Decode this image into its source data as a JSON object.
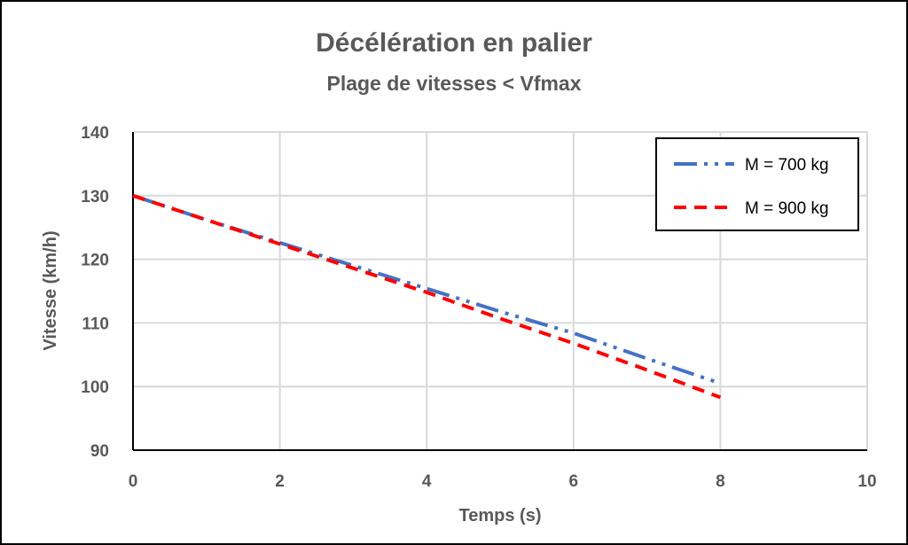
{
  "chart_data": {
    "type": "line",
    "title": "Décélération en palier",
    "subtitle": "Plage de vitesses < Vfmax",
    "xlabel": "Temps (s)",
    "ylabel": "Vitesse (km/h)",
    "xlim": [
      0,
      10
    ],
    "ylim": [
      90,
      140
    ],
    "x_ticks": [
      "0",
      "2",
      "4",
      "6",
      "8",
      "10"
    ],
    "y_ticks": [
      "90",
      "100",
      "110",
      "120",
      "130",
      "140"
    ],
    "grid": true,
    "legend_position": "top-right",
    "series": [
      {
        "name": "M = 700 kg",
        "color": "#4472C4",
        "dash": "long-dash-dot-dot",
        "x": [
          0,
          1,
          2,
          3,
          4,
          5,
          6,
          7,
          8
        ],
        "y": [
          130,
          126.2,
          122.6,
          119.0,
          115.4,
          111.8,
          108.4,
          104.4,
          100.5
        ]
      },
      {
        "name": "M = 900 kg",
        "color": "#FF0000",
        "dash": "dash",
        "x": [
          0,
          1,
          2,
          3,
          4,
          5,
          6,
          7,
          8
        ],
        "y": [
          130,
          126.2,
          122.4,
          118.6,
          114.8,
          110.7,
          106.8,
          102.6,
          98.3
        ]
      }
    ]
  }
}
